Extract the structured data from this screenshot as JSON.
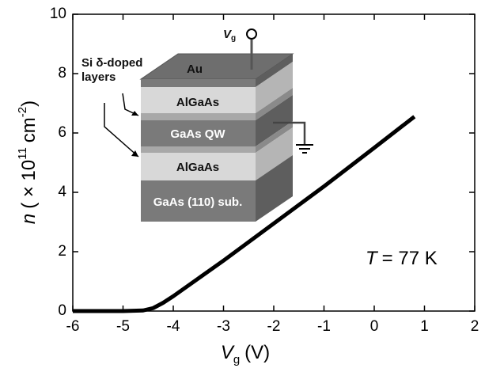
{
  "chart_data": {
    "type": "line",
    "xlabel": {
      "symbol": "V",
      "subscript": "g",
      "unit": "(V)"
    },
    "ylabel": {
      "symbol": "n",
      "pre": "( × 10",
      "exp": "11",
      "unit": "cm",
      "unit_exp": "-2",
      "post": ")"
    },
    "annotation": {
      "symbol": "T",
      "text": "= 77 K"
    },
    "x": [
      -6,
      -5,
      -4.6,
      -4.4,
      -4.2,
      -4.0,
      -3.5,
      -3,
      -2,
      -1,
      0,
      0.8
    ],
    "values": [
      0,
      0,
      0.02,
      0.1,
      0.28,
      0.5,
      1.1,
      1.7,
      2.95,
      4.2,
      5.5,
      6.55
    ],
    "color": "#000000",
    "xlim": [
      -6,
      2
    ],
    "xticks": [
      -6,
      -5,
      -4,
      -3,
      -2,
      -1,
      0,
      1,
      2
    ],
    "ylim": [
      0,
      10
    ],
    "yticks": [
      0,
      2,
      4,
      6,
      8,
      10
    ],
    "inset": {
      "top_layer": "Au",
      "layers": [
        "AlGaAs",
        "GaAs QW",
        "AlGaAs",
        "GaAs (110) sub."
      ],
      "doping_label": [
        "Si δ-doped",
        "layers"
      ],
      "gate": {
        "symbol": "V",
        "subscript": "g"
      }
    }
  }
}
